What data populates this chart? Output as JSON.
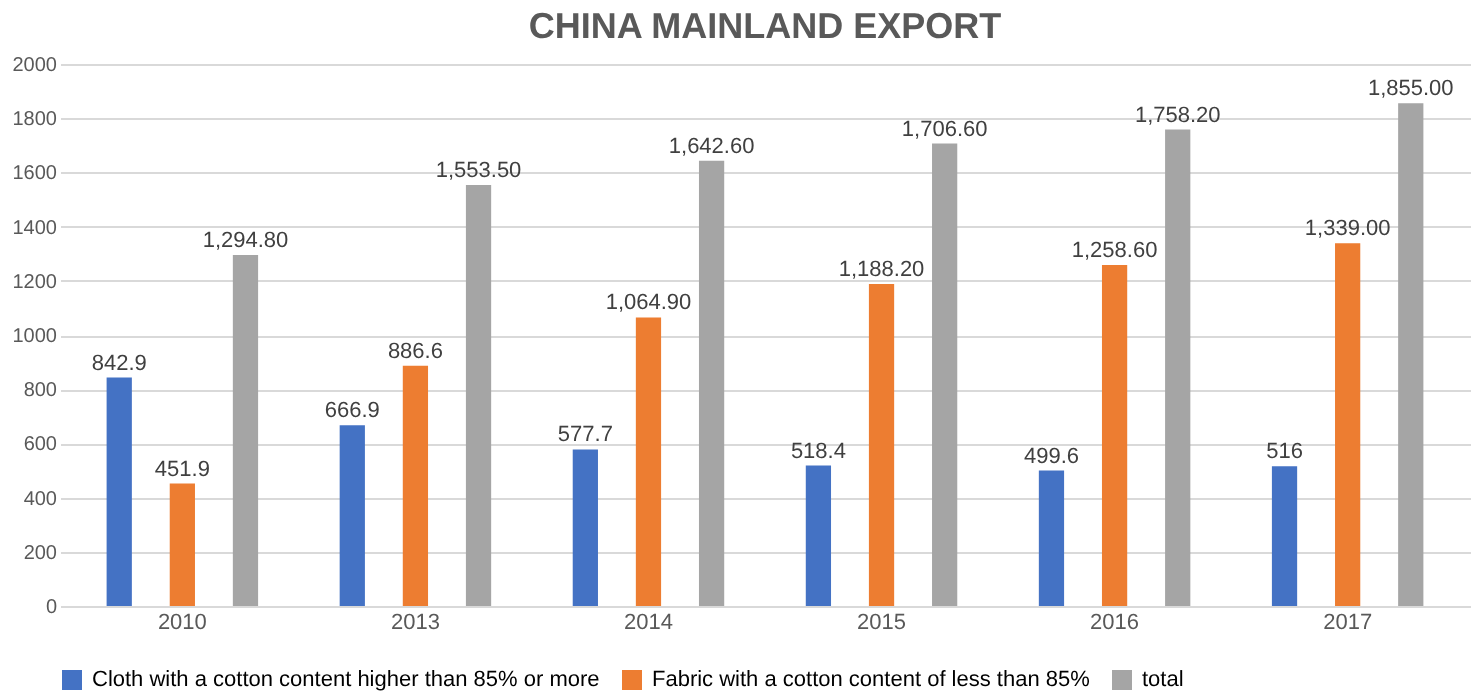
{
  "chart_data": {
    "type": "bar",
    "title": "CHINA MAINLAND EXPORT",
    "categories": [
      "2010",
      "2013",
      "2014",
      "2015",
      "2016",
      "2017"
    ],
    "series": [
      {
        "name": "Cloth with a cotton content higher than 85% or more",
        "color": "#4472c4",
        "values": [
          842.9,
          666.9,
          577.7,
          518.4,
          499.6,
          516
        ],
        "value_labels": [
          "842.9",
          "666.9",
          "577.7",
          "518.4",
          "499.6",
          "516"
        ]
      },
      {
        "name": "Fabric with a cotton content of less than 85%",
        "color": "#ed7d31",
        "values": [
          451.9,
          886.6,
          1064.9,
          1188.2,
          1258.6,
          1339.0
        ],
        "value_labels": [
          "451.9",
          "886.6",
          "1,064.90",
          "1,188.20",
          "1,258.60",
          "1,339.00"
        ]
      },
      {
        "name": "total",
        "color": "#a5a5a5",
        "values": [
          1294.8,
          1553.5,
          1642.6,
          1706.6,
          1758.2,
          1855.0
        ],
        "value_labels": [
          "1,294.80",
          "1,553.50",
          "1,642.60",
          "1,706.60",
          "1,758.20",
          "1,855.00"
        ]
      }
    ],
    "ylim": [
      0,
      2000
    ],
    "yticks": [
      0,
      200,
      400,
      600,
      800,
      1000,
      1200,
      1400,
      1600,
      1800,
      2000
    ],
    "grid": "y",
    "legend": "bottom"
  }
}
